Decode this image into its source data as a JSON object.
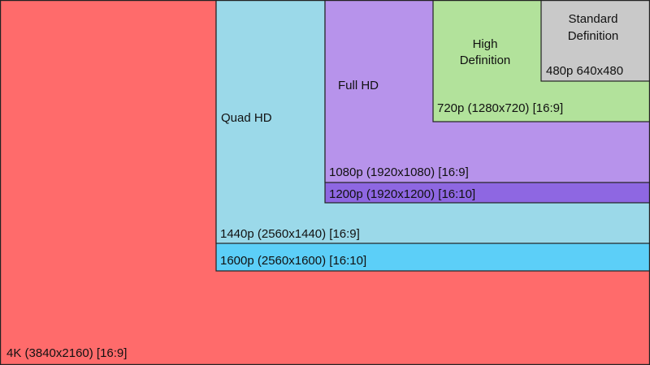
{
  "regions": [
    {
      "label": "4K (3840x2160) [16:9]"
    },
    {
      "label": "1600p (2560x1600) [16:10]"
    },
    {
      "name": [
        "Quad HD"
      ],
      "label": "1440p (2560x1440) [16:9]"
    },
    {
      "label": "1200p (1920x1200) [16:10]"
    },
    {
      "name": [
        "Full HD"
      ],
      "label": "1080p (1920x1080) [16:9]"
    },
    {
      "name": [
        "High",
        "Definition"
      ],
      "label": "720p (1280x720) [16:9]"
    },
    {
      "name": [
        "Standard",
        "Definition"
      ],
      "label": "480p 640x480"
    }
  ]
}
